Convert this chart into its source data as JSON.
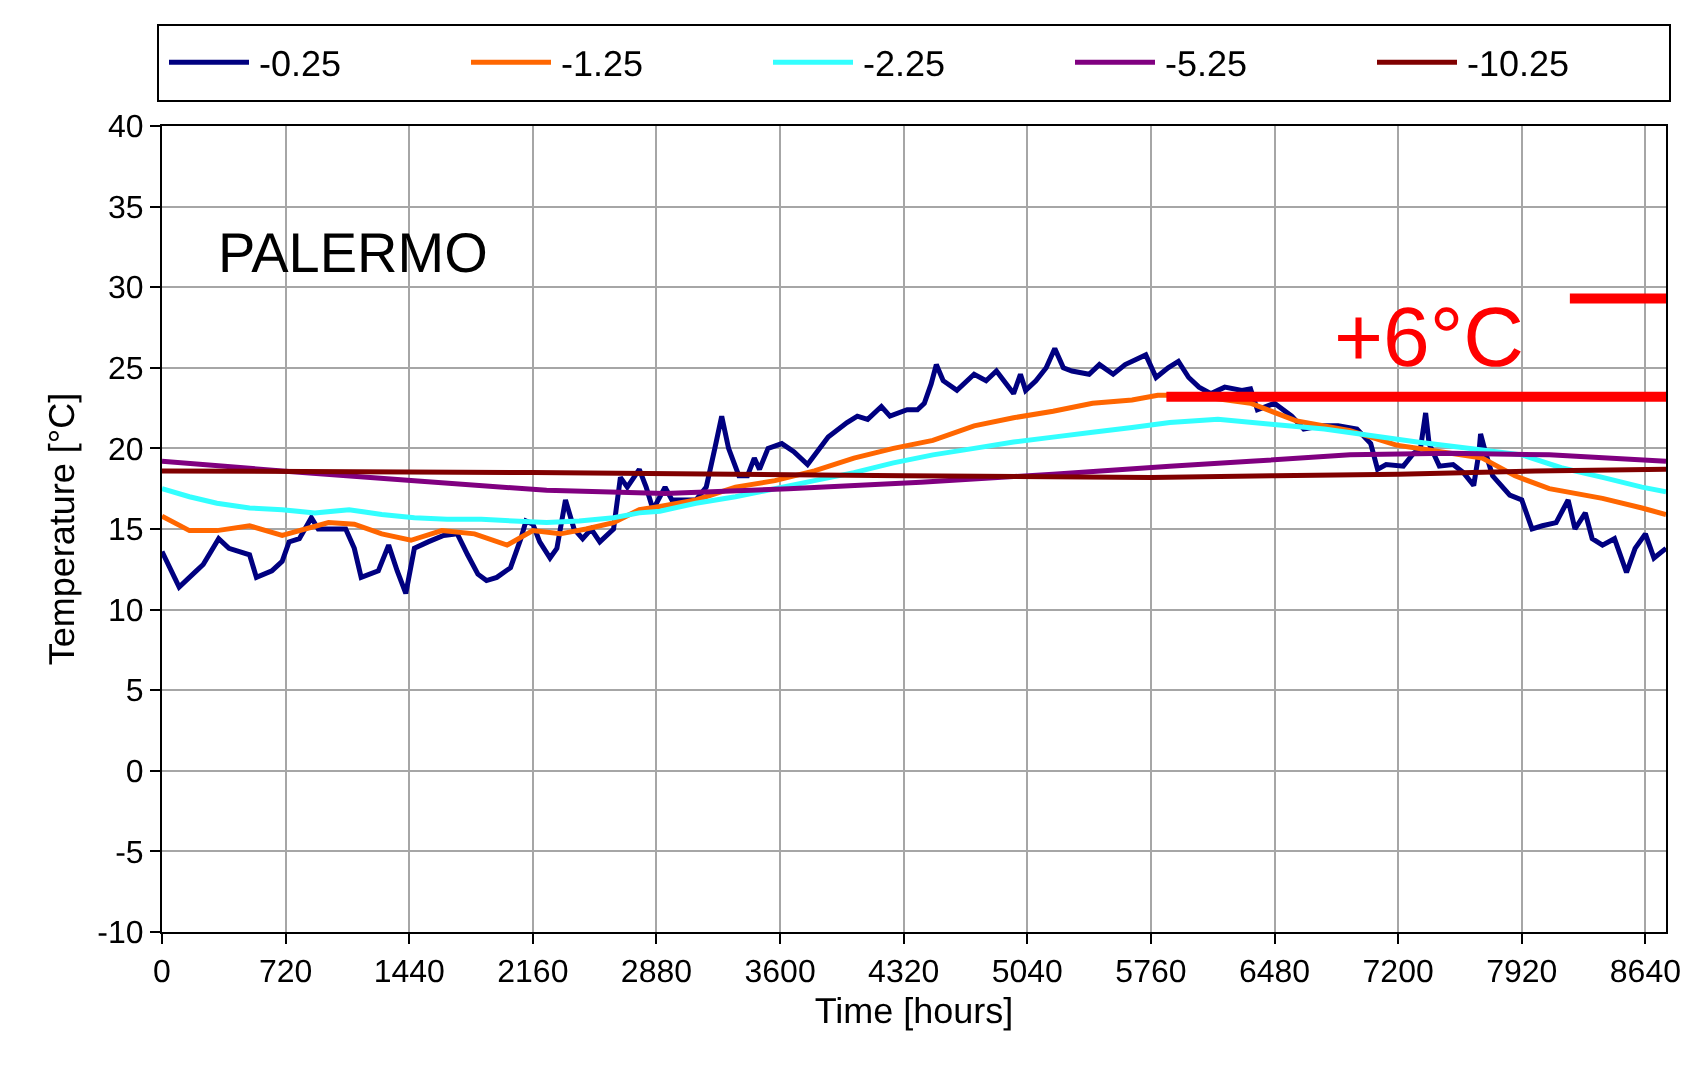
{
  "chart_data": {
    "type": "line",
    "xlabel": "Time [hours]",
    "ylabel": "Temperature [°C]",
    "xlim": [
      0,
      8760
    ],
    "xticks": [
      0,
      720,
      1440,
      2160,
      2880,
      3600,
      4320,
      5040,
      5760,
      6480,
      7200,
      7920,
      8640
    ],
    "ylim": [
      -10,
      40
    ],
    "yticks": [
      -10,
      -5,
      0,
      5,
      10,
      15,
      20,
      25,
      30,
      35,
      40
    ],
    "grid": true,
    "legend": "top",
    "annotations": [
      "PALERMO",
      "+6°C"
    ],
    "series": [
      {
        "name": "-0.25",
        "color": "#000080",
        "x": [
          0,
          100,
          200,
          240,
          330,
          390,
          510,
          550,
          640,
          700,
          740,
          800,
          870,
          910,
          1070,
          1120,
          1160,
          1260,
          1320,
          1370,
          1420,
          1470,
          1550,
          1640,
          1720,
          1780,
          1840,
          1890,
          1950,
          2030,
          2090,
          2120,
          2160,
          2200,
          2260,
          2300,
          2350,
          2400,
          2450,
          2500,
          2550,
          2630,
          2670,
          2710,
          2780,
          2820,
          2860,
          2930,
          2970,
          3110,
          3170,
          3220,
          3260,
          3300,
          3360,
          3410,
          3450,
          3480,
          3530,
          3610,
          3680,
          3760,
          3880,
          3990,
          4050,
          4110,
          4190,
          4240,
          4340,
          4400,
          4440,
          4480,
          4510,
          4550,
          4630,
          4730,
          4800,
          4860,
          4960,
          5000,
          5030,
          5090,
          5150,
          5200,
          5250,
          5300,
          5400,
          5460,
          5540,
          5610,
          5730,
          5790,
          5860,
          5920,
          5980,
          6040,
          6110,
          6190,
          6290,
          6340,
          6380,
          6480,
          6580,
          6650,
          6750,
          6850,
          6960,
          7040,
          7080,
          7130,
          7230,
          7290,
          7330,
          7360,
          7380,
          7440,
          7520,
          7580,
          7640,
          7670,
          7680,
          7710,
          7750,
          7850,
          7920,
          7980,
          8040,
          8120,
          8190,
          8230,
          8290,
          8330,
          8390,
          8460,
          8530,
          8580,
          8640,
          8690,
          8760
        ],
        "values": [
          13.6,
          11.4,
          12.4,
          12.8,
          14.4,
          13.8,
          13.4,
          12.0,
          12.4,
          13.0,
          14.2,
          14.4,
          15.7,
          15.0,
          15.0,
          13.8,
          12.0,
          12.4,
          14.0,
          12.4,
          11.0,
          13.8,
          14.2,
          14.6,
          14.7,
          13.4,
          12.2,
          11.8,
          12.0,
          12.6,
          14.4,
          15.5,
          15.3,
          14.2,
          13.2,
          13.8,
          16.8,
          15.0,
          14.4,
          15.0,
          14.2,
          15.0,
          18.2,
          17.6,
          18.7,
          17.6,
          16.2,
          17.6,
          16.8,
          16.8,
          17.6,
          20.0,
          22.0,
          20.0,
          18.3,
          18.3,
          19.4,
          18.7,
          20.0,
          20.3,
          19.8,
          19.0,
          20.7,
          21.6,
          22.0,
          21.8,
          22.6,
          22.0,
          22.4,
          22.4,
          22.8,
          24.0,
          25.2,
          24.2,
          23.6,
          24.6,
          24.2,
          24.8,
          23.4,
          24.6,
          23.6,
          24.2,
          25.0,
          26.2,
          25.0,
          24.8,
          24.6,
          25.2,
          24.6,
          25.2,
          25.8,
          24.4,
          25.0,
          25.4,
          24.4,
          23.8,
          23.4,
          23.8,
          23.6,
          23.7,
          22.4,
          22.8,
          22.0,
          21.2,
          21.4,
          21.4,
          21.2,
          20.3,
          18.7,
          19.0,
          18.9,
          19.7,
          20.0,
          22.2,
          20.3,
          18.9,
          19.0,
          18.5,
          17.7,
          19.7,
          20.9,
          19.7,
          18.3,
          17.1,
          16.8,
          15.0,
          15.2,
          15.4,
          16.8,
          15.0,
          16.0,
          14.4,
          14.0,
          14.4,
          12.3,
          13.8,
          14.7,
          13.2,
          13.8
        ]
      },
      {
        "name": "-1.25",
        "color": "#ff6600",
        "x": [
          0,
          160,
          320,
          510,
          700,
          970,
          1120,
          1280,
          1450,
          1630,
          1820,
          2010,
          2160,
          2320,
          2470,
          2630,
          2780,
          2900,
          3110,
          3340,
          3570,
          3800,
          4030,
          4260,
          4490,
          4730,
          4960,
          5190,
          5420,
          5650,
          5800,
          6000,
          6340,
          6610,
          6920,
          7190,
          7380,
          7690,
          7880,
          8080,
          8390,
          8620,
          8760
        ],
        "values": [
          15.8,
          14.9,
          14.9,
          15.2,
          14.6,
          15.4,
          15.3,
          14.7,
          14.3,
          14.9,
          14.7,
          14.0,
          14.9,
          14.7,
          15.0,
          15.4,
          16.2,
          16.4,
          16.8,
          17.6,
          18.0,
          18.6,
          19.4,
          20.0,
          20.5,
          21.4,
          21.9,
          22.3,
          22.8,
          23.0,
          23.3,
          23.3,
          22.8,
          21.7,
          21.1,
          20.2,
          19.9,
          19.4,
          18.3,
          17.5,
          16.9,
          16.3,
          15.9
        ]
      },
      {
        "name": "-2.25",
        "color": "#33ffff",
        "x": [
          0,
          160,
          320,
          510,
          700,
          890,
          1090,
          1280,
          1470,
          1660,
          1860,
          2050,
          2240,
          2430,
          2630,
          2780,
          2900,
          3110,
          3340,
          3570,
          3800,
          4030,
          4260,
          4490,
          4730,
          4960,
          5190,
          5420,
          5650,
          5870,
          6150,
          6460,
          6770,
          7040,
          7310,
          7620,
          7920,
          8150,
          8390,
          8620,
          8760
        ],
        "values": [
          17.5,
          17.0,
          16.6,
          16.3,
          16.2,
          16.0,
          16.2,
          15.9,
          15.7,
          15.6,
          15.6,
          15.5,
          15.4,
          15.5,
          15.7,
          16.0,
          16.1,
          16.6,
          17.0,
          17.5,
          18.0,
          18.5,
          19.1,
          19.6,
          20.0,
          20.4,
          20.7,
          21.0,
          21.3,
          21.6,
          21.8,
          21.5,
          21.2,
          20.8,
          20.4,
          20.0,
          19.6,
          18.8,
          18.2,
          17.6,
          17.3
        ]
      },
      {
        "name": "-5.25",
        "color": "#800080",
        "x": [
          0,
          700,
          1470,
          2240,
          2930,
          3650,
          4420,
          5190,
          5870,
          6340,
          6920,
          7500,
          8080,
          8760
        ],
        "values": [
          19.2,
          18.6,
          18.0,
          17.4,
          17.2,
          17.5,
          17.9,
          18.4,
          18.9,
          19.2,
          19.6,
          19.7,
          19.6,
          19.2
        ]
      },
      {
        "name": "-10.25",
        "color": "#800000",
        "x": [
          0,
          2160,
          4320,
          5760,
          6480,
          7200,
          8000,
          8760
        ],
        "values": [
          18.6,
          18.5,
          18.3,
          18.2,
          18.3,
          18.4,
          18.6,
          18.7
        ]
      },
      {
        "type": "line",
        "color": "#ff0000",
        "x": [
          5850,
          8760
        ],
        "values": [
          23.2,
          23.2
        ]
      },
      {
        "type": "line",
        "color": "#ff0000",
        "x": [
          8200,
          8760
        ],
        "values": [
          29.3,
          29.3
        ]
      }
    ]
  }
}
